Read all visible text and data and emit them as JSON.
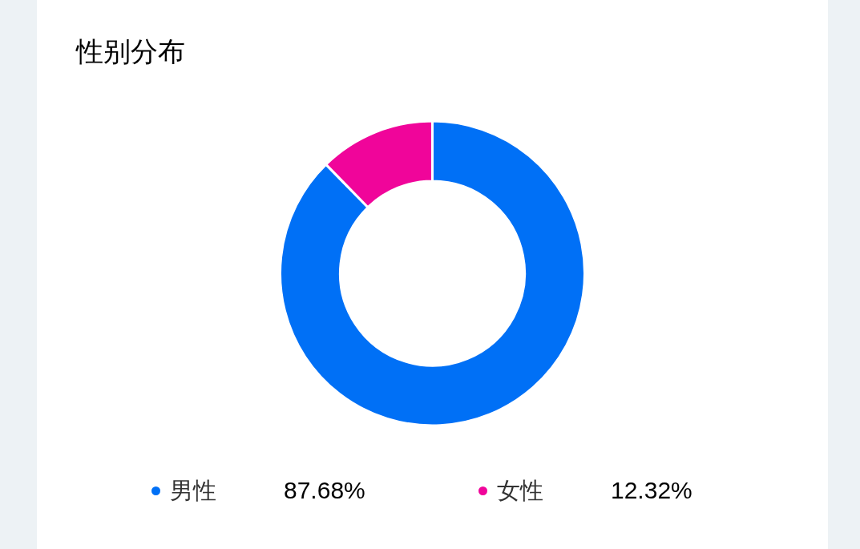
{
  "chart_data": {
    "type": "donut",
    "title": "性别分布",
    "categories": [
      "男性",
      "女性"
    ],
    "values": [
      87.68,
      12.32
    ],
    "colors": [
      "#0070f6",
      "#f0059a"
    ],
    "value_labels": [
      "87.68%",
      "12.32%"
    ],
    "legend": "bottom"
  }
}
